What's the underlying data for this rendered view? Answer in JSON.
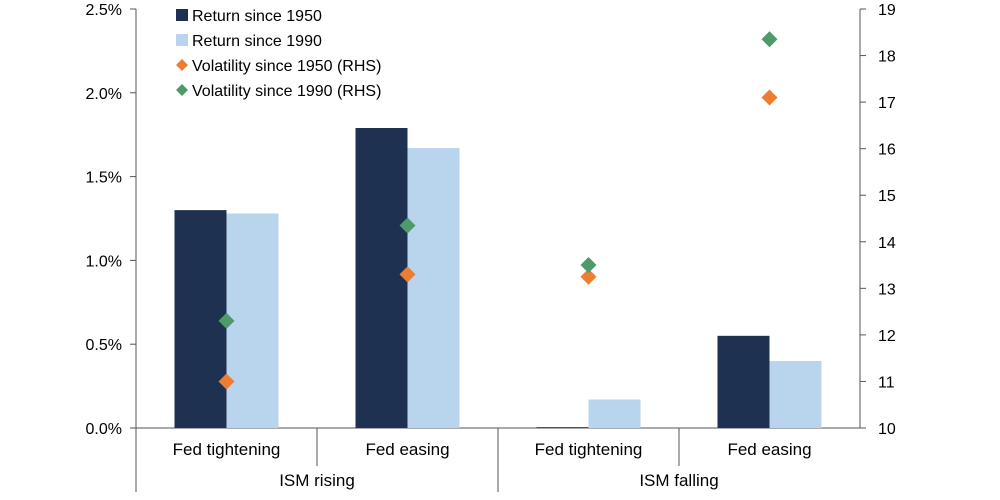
{
  "chart_data": {
    "type": "bar",
    "title": "",
    "categories": [
      "Fed tightening",
      "Fed easing",
      "Fed tightening",
      "Fed easing"
    ],
    "groups": [
      {
        "label": "ISM rising",
        "categories": [
          "Fed tightening",
          "Fed easing"
        ]
      },
      {
        "label": "ISM falling",
        "categories": [
          "Fed tightening",
          "Fed easing"
        ]
      }
    ],
    "left_axis": {
      "ylim": [
        0,
        2.5
      ],
      "ticks": [
        0,
        0.5,
        1.0,
        1.5,
        2.0,
        2.5
      ],
      "tick_labels": [
        "0.0%",
        "0.5%",
        "1.0%",
        "1.5%",
        "2.0%",
        "2.5%"
      ]
    },
    "right_axis": {
      "ylim": [
        10,
        19
      ],
      "ticks": [
        10,
        11,
        12,
        13,
        14,
        15,
        16,
        17,
        18,
        19
      ],
      "tick_labels": [
        "10",
        "11",
        "12",
        "13",
        "14",
        "15",
        "16",
        "17",
        "18",
        "19"
      ]
    },
    "series": [
      {
        "name": "Return since 1950",
        "kind": "bar",
        "axis": "left",
        "color": "#1f3150",
        "values": [
          1.3,
          1.79,
          0.005,
          0.55
        ]
      },
      {
        "name": "Return since 1990",
        "kind": "bar",
        "axis": "left",
        "color": "#b9d4ed",
        "values": [
          1.28,
          1.67,
          0.17,
          0.4
        ]
      },
      {
        "name": "Volatility since 1950 (RHS)",
        "kind": "marker",
        "marker": "diamond",
        "axis": "right",
        "color": "#ed7d31",
        "values": [
          11.0,
          13.3,
          13.25,
          17.1
        ]
      },
      {
        "name": "Volatility since 1990 (RHS)",
        "kind": "marker",
        "marker": "diamond",
        "axis": "right",
        "color": "#4e9a6a",
        "values": [
          12.3,
          14.35,
          13.5,
          18.35
        ]
      }
    ],
    "legend_position": "top-left",
    "grid": false
  }
}
